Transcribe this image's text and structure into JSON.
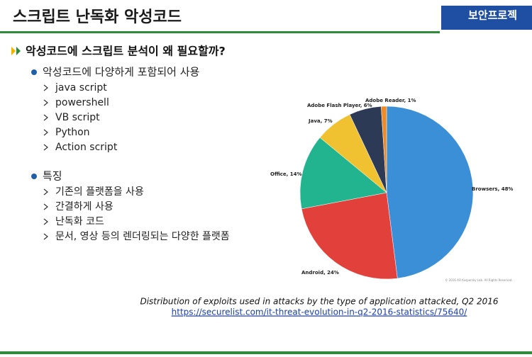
{
  "header": {
    "title": "스크립트 난독화 악성코드",
    "logo": "보안프로젝"
  },
  "section": "악성코드에 스크립트 분석이 왜 필요할까?",
  "groups": [
    {
      "label": "악성코드에 다양하게 포함되어 사용",
      "items": [
        "java script",
        "powershell",
        "VB script",
        "Python",
        "Action script"
      ]
    },
    {
      "label": "특징",
      "items": [
        "기존의 플랫폼을 사용",
        "간결하게 사용",
        "난독화 코드",
        "문서, 영상 등의 렌더링되는 다양한 플랫폼"
      ]
    }
  ],
  "chart_data": {
    "type": "pie",
    "values": [
      48,
      24,
      14,
      7,
      6,
      1
    ],
    "value_labels": [
      "Browsers, 48%",
      "Android, 24%",
      "Office, 14%",
      "Java, 7%",
      "Adobe Flash Player, 6%",
      "Adobe Reader, 1%"
    ],
    "colors": [
      "#3b8fd6",
      "#e2403a",
      "#22b48e",
      "#f0c131",
      "#2c3a55",
      "#f08a24"
    ],
    "note": "© 2016 AO Kaspersky Lab. All Rights Reserved."
  },
  "caption": "Distribution of exploits used in attacks by the type of application attacked, Q2 2016",
  "link": "https://securelist.com/it-threat-evolution-in-q2-2016-statistics/75640/"
}
